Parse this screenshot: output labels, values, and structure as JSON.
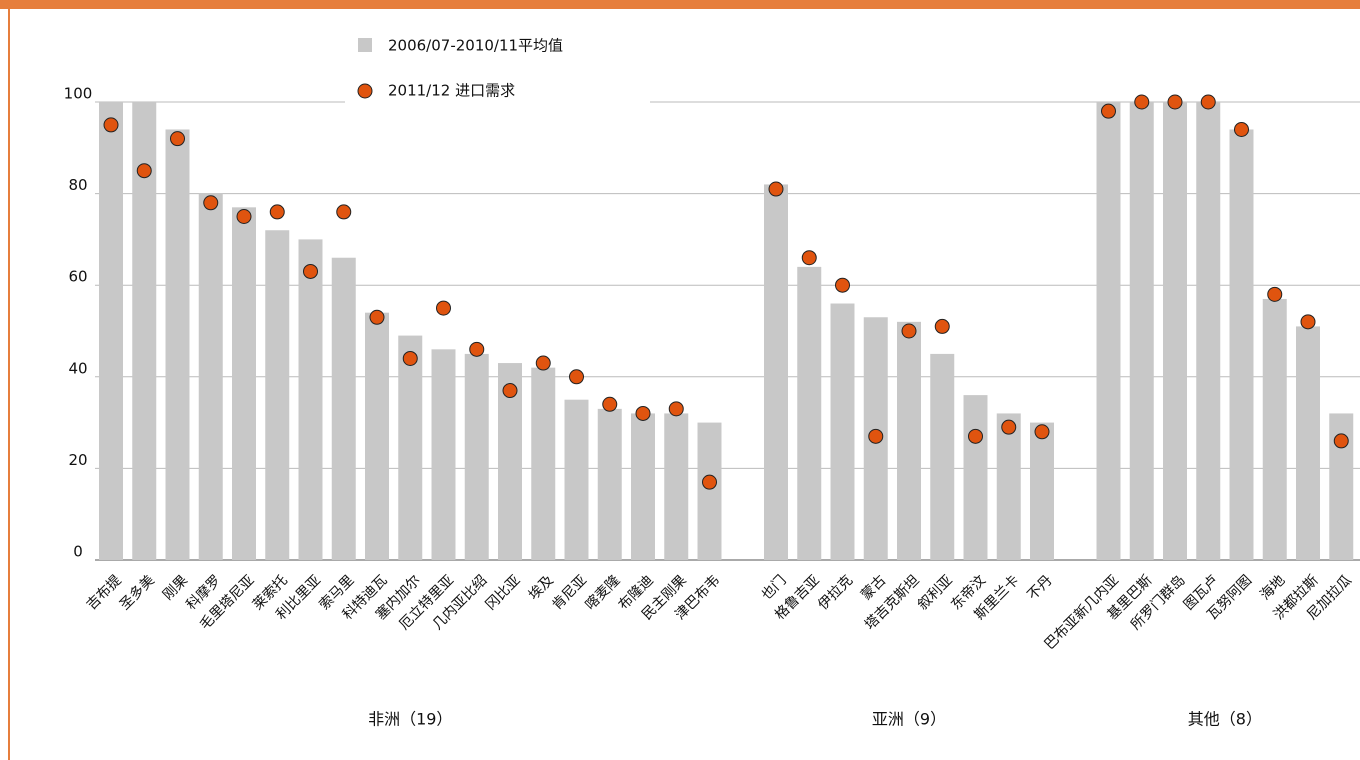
{
  "chart_data": {
    "type": "bar",
    "ylim": [
      0,
      100
    ],
    "yticks": [
      0,
      20,
      40,
      60,
      80,
      100
    ],
    "grid": true,
    "series": [
      {
        "name": "2006/07-2010/11平均值",
        "color": "#c8c8c8",
        "type": "bar"
      },
      {
        "name": "2011/12 进口需求",
        "color": "#e0540f",
        "type": "scatter"
      }
    ],
    "groups": [
      {
        "label": "非洲（19）",
        "categories": [
          "吉布提",
          "圣多美",
          "刚果",
          "科摩罗",
          "毛里塔尼亚",
          "莱索托",
          "利比里亚",
          "索马里",
          "科特迪瓦",
          "塞内加尔",
          "厄立特里亚",
          "几内亚比绍",
          "冈比亚",
          "埃及",
          "肯尼亚",
          "喀麦隆",
          "布隆迪",
          "民主刚果",
          "津巴布韦"
        ],
        "series": [
          {
            "values": [
              100,
              100,
              94,
              80,
              77,
              72,
              70,
              66,
              54,
              49,
              46,
              45,
              43,
              42,
              35,
              33,
              32,
              32,
              30
            ]
          },
          {
            "values": [
              95,
              85,
              92,
              78,
              75,
              76,
              63,
              76,
              53,
              44,
              55,
              46,
              37,
              43,
              40,
              34,
              32,
              33,
              17
            ]
          }
        ]
      },
      {
        "label": "亚洲（9）",
        "categories": [
          "也门",
          "格鲁吉亚",
          "伊拉克",
          "蒙古",
          "塔吉克斯坦",
          "叙利亚",
          "东帝汶",
          "斯里兰卡",
          "不丹"
        ],
        "series": [
          {
            "values": [
              82,
              64,
              56,
              53,
              52,
              45,
              36,
              32,
              30
            ]
          },
          {
            "values": [
              81,
              66,
              60,
              27,
              50,
              51,
              27,
              29,
              28
            ]
          }
        ]
      },
      {
        "label": "其他（8）",
        "categories": [
          "巴布亚新几内亚",
          "基里巴斯",
          "所罗门群岛",
          "图瓦卢",
          "瓦努阿图",
          "海地",
          "洪都拉斯",
          "尼加拉瓜"
        ],
        "series": [
          {
            "values": [
              100,
              100,
              100,
              100,
              94,
              57,
              51,
              32
            ]
          },
          {
            "values": [
              98,
              100,
              100,
              100,
              94,
              58,
              52,
              26
            ]
          }
        ]
      }
    ]
  }
}
